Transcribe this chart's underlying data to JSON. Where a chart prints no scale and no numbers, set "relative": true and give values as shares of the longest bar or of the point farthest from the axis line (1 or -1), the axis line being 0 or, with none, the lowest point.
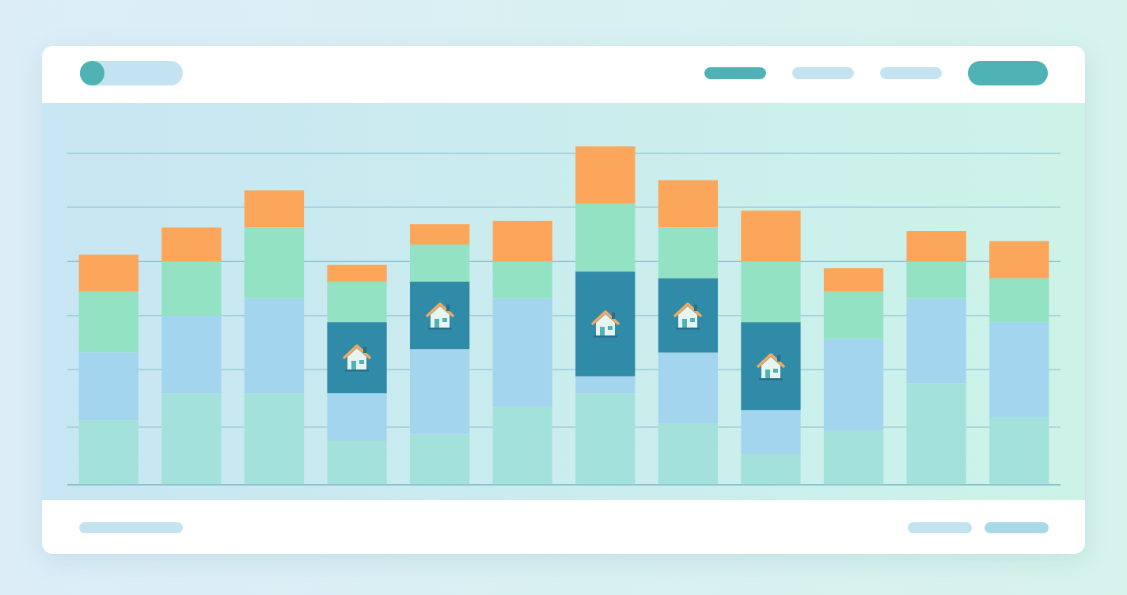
{
  "chart_data": {
    "type": "bar",
    "stacked": true,
    "relative": true,
    "legend": false,
    "ref_lines": [
      {
        "axis": "y",
        "value": 0.17,
        "color": "#8fc3d3"
      },
      {
        "axis": "y",
        "value": 0.34,
        "color": "#8fc3d3"
      },
      {
        "axis": "y",
        "value": 0.5,
        "color": "#8fc3d3"
      },
      {
        "axis": "y",
        "value": 0.66,
        "color": "#8fc3d3"
      },
      {
        "axis": "y",
        "value": 0.82,
        "color": "#8fc3d3"
      },
      {
        "axis": "y",
        "value": 0.98,
        "color": "#8fc3d3"
      }
    ],
    "categories": [
      null,
      null,
      null,
      null,
      null,
      null,
      null,
      null,
      null,
      null,
      null,
      null
    ],
    "series": [
      {
        "color": "#a3e2da",
        "values": [
          0.19,
          0.27,
          0.27,
          0.13,
          0.15,
          0.23,
          0.27,
          0.18,
          0.09,
          0.16,
          0.3,
          0.2
        ]
      },
      {
        "color": "#a3d5ee",
        "values": [
          0.2,
          0.23,
          0.28,
          0.14,
          0.25,
          0.32,
          0.05,
          0.21,
          0.13,
          0.27,
          0.25,
          0.28
        ]
      },
      {
        "color": "#2f8ba8",
        "values": [
          0,
          0,
          0,
          0.21,
          0.2,
          0,
          0.31,
          0.22,
          0.26,
          0,
          0,
          0
        ]
      },
      {
        "color": "#94e2c4",
        "values": [
          0.18,
          0.16,
          0.21,
          0.12,
          0.11,
          0.11,
          0.2,
          0.15,
          0.18,
          0.14,
          0.11,
          0.13
        ]
      },
      {
        "color": "#fba65a",
        "values": [
          0.11,
          0.1,
          0.11,
          0.05,
          0.06,
          0.12,
          0.17,
          0.14,
          0.15,
          0.07,
          0.09,
          0.11
        ]
      }
    ]
  }
}
